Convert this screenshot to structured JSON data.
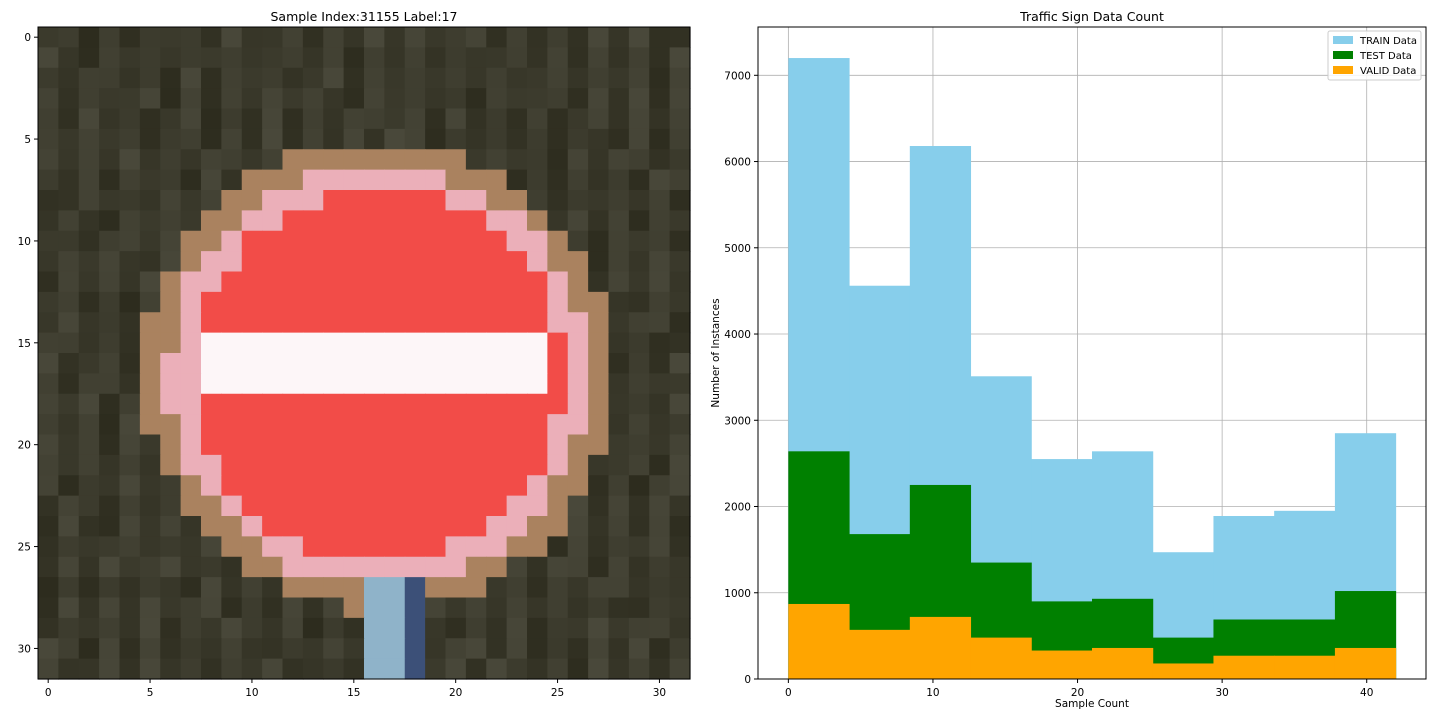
{
  "chart_data": [
    {
      "type": "heatmap",
      "title": "Sample Index:31155  Label:17",
      "xlabel": "",
      "ylabel": "",
      "xlim": [
        -0.5,
        31.5
      ],
      "ylim": [
        31.5,
        -0.5
      ],
      "x_ticks": [
        0,
        5,
        10,
        15,
        20,
        25,
        30
      ],
      "y_ticks": [
        0,
        5,
        10,
        15,
        20,
        25,
        30
      ],
      "grid": false,
      "image": {
        "width": 32,
        "height": 32,
        "description_colors": {
          "background": "#3b3a2c",
          "sign_red": "#f24c48",
          "sign_bar": "#fdf6f8",
          "post": "#8fb3c9"
        }
      }
    },
    {
      "type": "histogram",
      "title": "Traffic Sign Data Count",
      "xlabel": "Sample Count",
      "ylabel": "Number of Instances",
      "xlim": [
        -2.1,
        44.1
      ],
      "ylim": [
        0,
        7560
      ],
      "x_ticks": [
        0,
        10,
        20,
        30,
        40
      ],
      "y_ticks": [
        0,
        1000,
        2000,
        3000,
        4000,
        5000,
        6000,
        7000
      ],
      "grid": true,
      "legend_position": "top-right",
      "bin_edges": [
        0,
        4.2,
        8.4,
        12.6,
        16.8,
        21.0,
        25.2,
        29.4,
        33.6,
        37.8,
        42.0
      ],
      "series": [
        {
          "name": "TRAIN Data",
          "color": "#87ceeb",
          "values": [
            7200,
            4560,
            6180,
            3510,
            2550,
            2640,
            1470,
            1890,
            1950,
            2850
          ]
        },
        {
          "name": "TEST Data",
          "color": "#008000",
          "values": [
            2640,
            1680,
            2250,
            1350,
            900,
            930,
            480,
            690,
            690,
            1020
          ]
        },
        {
          "name": "VALID Data",
          "color": "#ffa500",
          "values": [
            870,
            570,
            720,
            480,
            330,
            360,
            180,
            270,
            270,
            360
          ]
        }
      ]
    }
  ]
}
